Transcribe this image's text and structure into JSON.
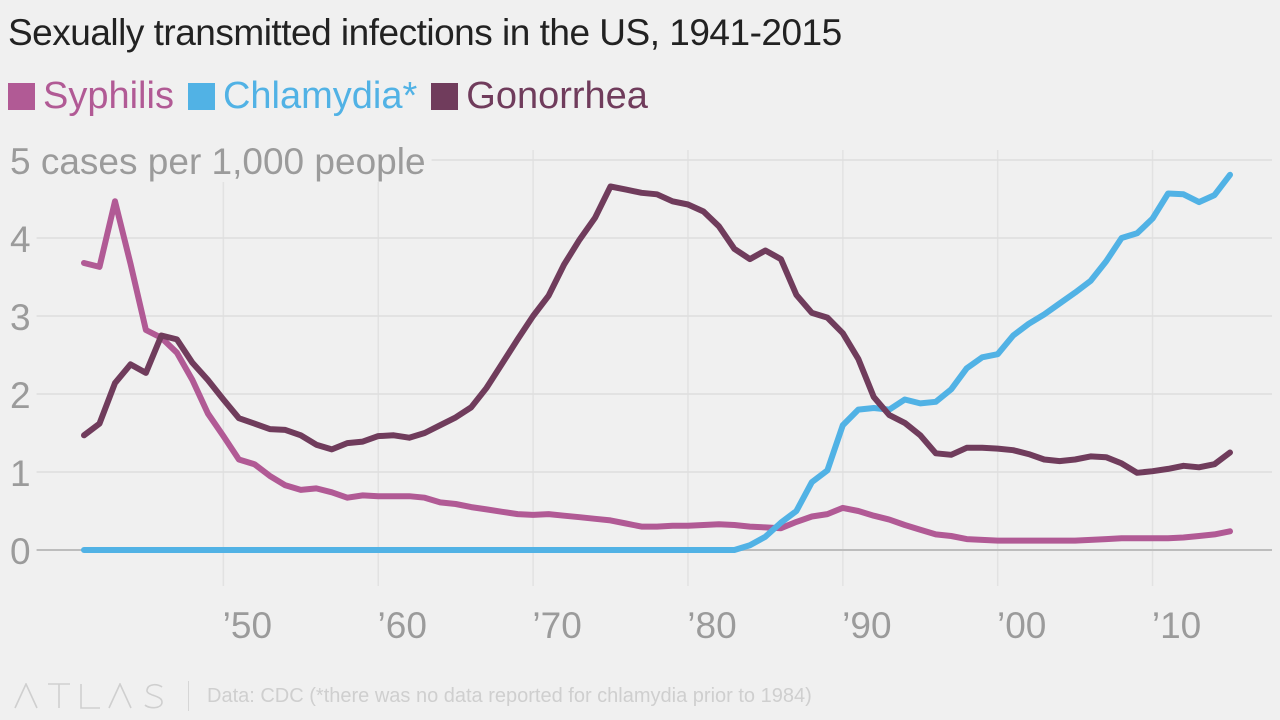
{
  "title": "Sexually transmitted infections in the US, 1941-2015",
  "legend": [
    {
      "label": "Syphilis",
      "color": "#b15a95"
    },
    {
      "label": "Chlamydia*",
      "color": "#51b2e5"
    },
    {
      "label": "Gonorrhea",
      "color": "#703c5c"
    }
  ],
  "footer": {
    "brand": "ATLAS",
    "source": "Data: CDC (*there was no data reported for chlamydia prior to 1984)"
  },
  "chart_data": {
    "type": "line",
    "title": "Sexually transmitted infections in the US, 1941-2015",
    "ylabel": "cases per 1,000 people",
    "ylim": [
      0,
      5
    ],
    "xlim": [
      1941,
      2015
    ],
    "y_ticks": [
      {
        "value": 0,
        "label": "0"
      },
      {
        "value": 1,
        "label": "1"
      },
      {
        "value": 2,
        "label": "2"
      },
      {
        "value": 3,
        "label": "3"
      },
      {
        "value": 4,
        "label": "4"
      },
      {
        "value": 5,
        "label": "5 cases per 1,000 people"
      }
    ],
    "x_ticks": [
      {
        "value": 1950,
        "label": "’50"
      },
      {
        "value": 1960,
        "label": "’60"
      },
      {
        "value": 1970,
        "label": "’70"
      },
      {
        "value": 1980,
        "label": "’80"
      },
      {
        "value": 1990,
        "label": "’90"
      },
      {
        "value": 2000,
        "label": "’00"
      },
      {
        "value": 2010,
        "label": "’10"
      }
    ],
    "grid": true,
    "legend_position": "top-left",
    "series": [
      {
        "name": "Syphilis",
        "color": "#b15a95",
        "points": [
          [
            1941,
            3.68
          ],
          [
            1942,
            3.63
          ],
          [
            1943,
            4.47
          ],
          [
            1944,
            3.67
          ],
          [
            1945,
            2.82
          ],
          [
            1946,
            2.72
          ],
          [
            1947,
            2.53
          ],
          [
            1948,
            2.18
          ],
          [
            1949,
            1.75
          ],
          [
            1950,
            1.46
          ],
          [
            1951,
            1.16
          ],
          [
            1952,
            1.1
          ],
          [
            1953,
            0.95
          ],
          [
            1954,
            0.83
          ],
          [
            1955,
            0.77
          ],
          [
            1956,
            0.79
          ],
          [
            1957,
            0.74
          ],
          [
            1958,
            0.67
          ],
          [
            1959,
            0.7
          ],
          [
            1960,
            0.69
          ],
          [
            1961,
            0.69
          ],
          [
            1962,
            0.69
          ],
          [
            1963,
            0.67
          ],
          [
            1964,
            0.61
          ],
          [
            1965,
            0.59
          ],
          [
            1966,
            0.55
          ],
          [
            1967,
            0.52
          ],
          [
            1968,
            0.49
          ],
          [
            1969,
            0.46
          ],
          [
            1970,
            0.45
          ],
          [
            1971,
            0.46
          ],
          [
            1972,
            0.44
          ],
          [
            1973,
            0.42
          ],
          [
            1974,
            0.4
          ],
          [
            1975,
            0.38
          ],
          [
            1976,
            0.34
          ],
          [
            1977,
            0.3
          ],
          [
            1978,
            0.3
          ],
          [
            1979,
            0.31
          ],
          [
            1980,
            0.31
          ],
          [
            1981,
            0.32
          ],
          [
            1982,
            0.33
          ],
          [
            1983,
            0.32
          ],
          [
            1984,
            0.3
          ],
          [
            1985,
            0.29
          ],
          [
            1986,
            0.28
          ],
          [
            1987,
            0.36
          ],
          [
            1988,
            0.43
          ],
          [
            1989,
            0.46
          ],
          [
            1990,
            0.54
          ],
          [
            1991,
            0.5
          ],
          [
            1992,
            0.44
          ],
          [
            1993,
            0.39
          ],
          [
            1994,
            0.32
          ],
          [
            1995,
            0.26
          ],
          [
            1996,
            0.2
          ],
          [
            1997,
            0.18
          ],
          [
            1998,
            0.14
          ],
          [
            1999,
            0.13
          ],
          [
            2000,
            0.12
          ],
          [
            2001,
            0.12
          ],
          [
            2002,
            0.12
          ],
          [
            2003,
            0.12
          ],
          [
            2004,
            0.12
          ],
          [
            2005,
            0.12
          ],
          [
            2006,
            0.13
          ],
          [
            2007,
            0.14
          ],
          [
            2008,
            0.15
          ],
          [
            2009,
            0.15
          ],
          [
            2010,
            0.15
          ],
          [
            2011,
            0.15
          ],
          [
            2012,
            0.16
          ],
          [
            2013,
            0.18
          ],
          [
            2014,
            0.2
          ],
          [
            2015,
            0.24
          ]
        ]
      },
      {
        "name": "Chlamydia*",
        "color": "#51b2e5",
        "points": [
          [
            1941,
            0
          ],
          [
            1983,
            0
          ],
          [
            1984,
            0.06
          ],
          [
            1985,
            0.17
          ],
          [
            1986,
            0.35
          ],
          [
            1987,
            0.5
          ],
          [
            1988,
            0.87
          ],
          [
            1989,
            1.02
          ],
          [
            1990,
            1.6
          ],
          [
            1991,
            1.8
          ],
          [
            1992,
            1.82
          ],
          [
            1993,
            1.8
          ],
          [
            1994,
            1.93
          ],
          [
            1995,
            1.88
          ],
          [
            1996,
            1.9
          ],
          [
            1997,
            2.06
          ],
          [
            1998,
            2.33
          ],
          [
            1999,
            2.47
          ],
          [
            2000,
            2.51
          ],
          [
            2001,
            2.75
          ],
          [
            2002,
            2.9
          ],
          [
            2003,
            3.02
          ],
          [
            2004,
            3.16
          ],
          [
            2005,
            3.3
          ],
          [
            2006,
            3.45
          ],
          [
            2007,
            3.7
          ],
          [
            2008,
            4.0
          ],
          [
            2009,
            4.06
          ],
          [
            2010,
            4.25
          ],
          [
            2011,
            4.57
          ],
          [
            2012,
            4.56
          ],
          [
            2013,
            4.46
          ],
          [
            2014,
            4.55
          ],
          [
            2015,
            4.81
          ]
        ]
      },
      {
        "name": "Gonorrhea",
        "color": "#703c5c",
        "points": [
          [
            1941,
            1.47
          ],
          [
            1942,
            1.62
          ],
          [
            1943,
            2.14
          ],
          [
            1944,
            2.38
          ],
          [
            1945,
            2.27
          ],
          [
            1946,
            2.75
          ],
          [
            1947,
            2.7
          ],
          [
            1948,
            2.4
          ],
          [
            1949,
            2.18
          ],
          [
            1950,
            1.93
          ],
          [
            1951,
            1.69
          ],
          [
            1952,
            1.62
          ],
          [
            1953,
            1.55
          ],
          [
            1954,
            1.54
          ],
          [
            1955,
            1.47
          ],
          [
            1956,
            1.35
          ],
          [
            1957,
            1.29
          ],
          [
            1958,
            1.37
          ],
          [
            1959,
            1.39
          ],
          [
            1960,
            1.46
          ],
          [
            1961,
            1.47
          ],
          [
            1962,
            1.44
          ],
          [
            1963,
            1.5
          ],
          [
            1964,
            1.6
          ],
          [
            1965,
            1.7
          ],
          [
            1966,
            1.83
          ],
          [
            1967,
            2.08
          ],
          [
            1968,
            2.39
          ],
          [
            1969,
            2.7
          ],
          [
            1970,
            3.0
          ],
          [
            1971,
            3.26
          ],
          [
            1972,
            3.66
          ],
          [
            1973,
            3.98
          ],
          [
            1974,
            4.26
          ],
          [
            1975,
            4.66
          ],
          [
            1976,
            4.62
          ],
          [
            1977,
            4.58
          ],
          [
            1978,
            4.56
          ],
          [
            1979,
            4.47
          ],
          [
            1980,
            4.43
          ],
          [
            1981,
            4.34
          ],
          [
            1982,
            4.15
          ],
          [
            1983,
            3.86
          ],
          [
            1984,
            3.73
          ],
          [
            1985,
            3.84
          ],
          [
            1986,
            3.73
          ],
          [
            1987,
            3.27
          ],
          [
            1988,
            3.04
          ],
          [
            1989,
            2.98
          ],
          [
            1990,
            2.78
          ],
          [
            1991,
            2.45
          ],
          [
            1992,
            1.96
          ],
          [
            1993,
            1.73
          ],
          [
            1994,
            1.63
          ],
          [
            1995,
            1.47
          ],
          [
            1996,
            1.24
          ],
          [
            1997,
            1.22
          ],
          [
            1998,
            1.31
          ],
          [
            1999,
            1.31
          ],
          [
            2000,
            1.3
          ],
          [
            2001,
            1.28
          ],
          [
            2002,
            1.23
          ],
          [
            2003,
            1.16
          ],
          [
            2004,
            1.14
          ],
          [
            2005,
            1.16
          ],
          [
            2006,
            1.2
          ],
          [
            2007,
            1.19
          ],
          [
            2008,
            1.11
          ],
          [
            2009,
            0.99
          ],
          [
            2010,
            1.01
          ],
          [
            2011,
            1.04
          ],
          [
            2012,
            1.08
          ],
          [
            2013,
            1.06
          ],
          [
            2014,
            1.1
          ],
          [
            2015,
            1.25
          ]
        ]
      }
    ]
  }
}
